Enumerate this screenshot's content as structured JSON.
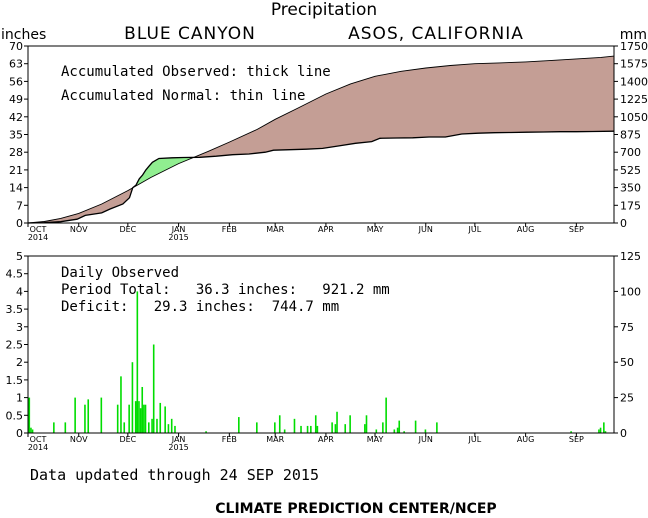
{
  "header": {
    "title": "Precipitation",
    "station": "BLUE CANYON",
    "network": "ASOS, CALIFORNIA",
    "left_unit": "inches",
    "right_unit": "mm"
  },
  "footer": {
    "updated": "Data updated through 24 SEP 2015",
    "credit": "CLIMATE PREDICTION CENTER/NCEP"
  },
  "colors": {
    "surplus": "#90ee90",
    "deficit": "#c49e95",
    "bars": "#00dd00"
  },
  "chart_data": [
    {
      "type": "area",
      "legend": [
        "Accumulated Observed: thick line",
        "Accumulated Normal: thin line"
      ],
      "x_tick_labels": [
        "OCT\n2014",
        "NOV",
        "DEC",
        "JAN\n2015",
        "FEB",
        "MAR",
        "APR",
        "MAY",
        "JUN",
        "JUL",
        "AUG",
        "SEP"
      ],
      "ylim_left": [
        0,
        70
      ],
      "yticks_left": [
        0,
        7,
        14,
        21,
        28,
        35,
        42,
        49,
        56,
        63,
        70
      ],
      "ylim_right": [
        0,
        1750
      ],
      "yticks_right": [
        0,
        175,
        350,
        525,
        700,
        875,
        1050,
        1225,
        1400,
        1575,
        1750
      ],
      "series": [
        {
          "name": "Accumulated Observed",
          "x_days": [
            0,
            10,
            20,
            30,
            35,
            45,
            50,
            58,
            62,
            64,
            66,
            68,
            70,
            72,
            74,
            76,
            80,
            88,
            95,
            105,
            115,
            125,
            135,
            145,
            150,
            160,
            170,
            180,
            190,
            200,
            210,
            215,
            225,
            235,
            245,
            255,
            265,
            275,
            285,
            295,
            305,
            315,
            325,
            335,
            345,
            358
          ],
          "values": [
            0,
            0.1,
            0.5,
            1.5,
            3.0,
            4.0,
            5.5,
            7.5,
            10.0,
            14.0,
            15.0,
            17.5,
            19.0,
            21.0,
            22.5,
            24.0,
            25.5,
            25.8,
            25.9,
            26.0,
            26.4,
            27.0,
            27.3,
            28.0,
            28.8,
            29.0,
            29.2,
            29.5,
            30.5,
            31.5,
            32.2,
            33.5,
            33.6,
            33.7,
            34.0,
            34.0,
            35.2,
            35.5,
            35.7,
            35.8,
            35.9,
            36.0,
            36.1,
            36.1,
            36.2,
            36.3
          ]
        },
        {
          "name": "Accumulated Normal",
          "x_days": [
            0,
            10,
            20,
            31,
            45,
            61,
            75,
            92,
            110,
            123,
            140,
            151,
            165,
            182,
            197,
            212,
            228,
            243,
            258,
            273,
            288,
            304,
            320,
            335,
            350,
            358
          ],
          "values": [
            0,
            0.6,
            1.8,
            3.8,
            7.5,
            12.8,
            18.0,
            23.5,
            28.3,
            32.0,
            37.0,
            41.0,
            45.5,
            51.0,
            55.0,
            58.0,
            60.0,
            61.3,
            62.3,
            63.0,
            63.3,
            63.7,
            64.3,
            64.9,
            65.5,
            66.0
          ]
        }
      ]
    },
    {
      "type": "bar",
      "legend": [
        "Daily Observed",
        "Period Total:   36.3 inches:   921.2 mm",
        "Deficit:   29.3 inches:  744.7 mm"
      ],
      "x_tick_labels": [
        "OCT\n2014",
        "NOV",
        "DEC",
        "JAN\n2015",
        "FEB",
        "MAR",
        "APR",
        "MAY",
        "JUN",
        "JUL",
        "AUG",
        "SEP"
      ],
      "ylim_left": [
        0,
        5
      ],
      "yticks_left": [
        0,
        0.5,
        1,
        1.5,
        2,
        2.5,
        3,
        3.5,
        4,
        4.5,
        5
      ],
      "ylim_right": [
        0,
        125
      ],
      "yticks_right": [
        0,
        25,
        50,
        75,
        100,
        125
      ],
      "x_days": [
        0,
        1,
        2,
        15,
        22,
        28,
        34,
        36,
        44,
        54,
        56,
        58,
        61,
        63,
        65,
        66,
        67,
        68,
        69,
        70,
        71,
        73,
        75,
        76,
        78,
        80,
        83,
        85,
        87,
        89,
        108,
        128,
        139,
        150,
        153,
        156,
        162,
        166,
        170,
        172,
        175,
        176,
        185,
        187,
        188,
        193,
        196,
        205,
        206,
        212,
        216,
        218,
        223,
        225,
        226,
        229,
        236,
        242,
        249,
        331,
        348,
        349,
        351,
        352
      ],
      "values": [
        1.0,
        0.15,
        0.1,
        0.3,
        0.3,
        1.0,
        0.8,
        0.95,
        1.0,
        0.8,
        1.6,
        0.3,
        0.8,
        2.0,
        0.9,
        4.0,
        0.9,
        0.7,
        1.3,
        0.8,
        0.8,
        0.3,
        0.4,
        2.5,
        0.4,
        0.85,
        0.75,
        0.25,
        0.4,
        0.2,
        0.05,
        0.45,
        0.3,
        0.3,
        0.5,
        0.1,
        0.4,
        0.2,
        0.2,
        0.2,
        0.5,
        0.2,
        0.3,
        0.25,
        0.6,
        0.25,
        0.5,
        0.25,
        0.5,
        0.1,
        0.3,
        1.0,
        0.1,
        0.15,
        0.35,
        0.05,
        0.35,
        0.1,
        0.3,
        0.05,
        0.1,
        0.15,
        0.3,
        0.05
      ]
    }
  ]
}
